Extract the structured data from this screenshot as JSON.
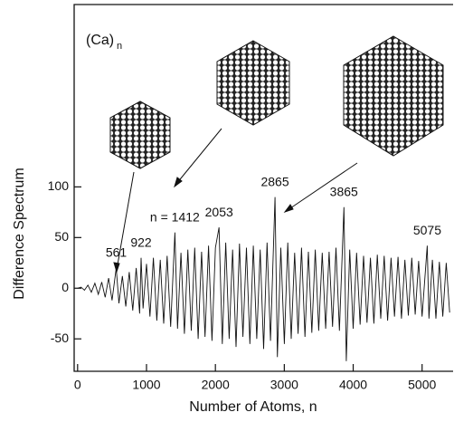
{
  "chart_data": {
    "type": "line",
    "title": "(Ca)",
    "title_subscript": "n",
    "x_label": "Number of Atoms, n",
    "y_label": "Difference Spectrum",
    "xlim": [
      -50,
      5450
    ],
    "ylim": [
      -82,
      280
    ],
    "xticks": [
      0,
      1000,
      2000,
      3000,
      4000,
      5000
    ],
    "yticks": [
      -50,
      0,
      50,
      100
    ],
    "color": "#111111",
    "x": [
      0,
      50,
      100,
      150,
      200,
      250,
      300,
      350,
      400,
      450,
      500,
      561,
      600,
      650,
      700,
      750,
      800,
      850,
      900,
      922,
      950,
      1000,
      1050,
      1100,
      1150,
      1200,
      1250,
      1300,
      1350,
      1412,
      1450,
      1500,
      1550,
      1600,
      1650,
      1700,
      1750,
      1800,
      1850,
      1900,
      1950,
      2000,
      2053,
      2100,
      2150,
      2200,
      2250,
      2300,
      2350,
      2400,
      2450,
      2500,
      2550,
      2600,
      2650,
      2700,
      2750,
      2800,
      2865,
      2900,
      2950,
      3000,
      3050,
      3100,
      3150,
      3200,
      3250,
      3300,
      3350,
      3400,
      3450,
      3500,
      3550,
      3600,
      3650,
      3700,
      3750,
      3800,
      3865,
      3900,
      3950,
      4000,
      4050,
      4100,
      4150,
      4200,
      4250,
      4300,
      4350,
      4400,
      4450,
      4500,
      4550,
      4600,
      4650,
      4700,
      4750,
      4800,
      4850,
      4900,
      4950,
      5000,
      5075,
      5100,
      5150,
      5200,
      5250,
      5300,
      5350,
      5400
    ],
    "values": [
      0,
      1,
      -2,
      3,
      -4,
      5,
      -6,
      6,
      -9,
      10,
      -12,
      20,
      -15,
      12,
      -18,
      16,
      -22,
      20,
      -25,
      30,
      -20,
      24,
      -28,
      30,
      -32,
      28,
      -35,
      32,
      -38,
      55,
      -40,
      35,
      -45,
      38,
      -42,
      40,
      -50,
      36,
      -48,
      42,
      -52,
      40,
      60,
      -55,
      45,
      -50,
      38,
      -58,
      44,
      -48,
      40,
      -55,
      42,
      -50,
      38,
      -60,
      45,
      -52,
      90,
      -68,
      40,
      -55,
      45,
      -50,
      35,
      -45,
      40,
      -48,
      36,
      -44,
      38,
      -42,
      35,
      -40,
      36,
      -38,
      40,
      -42,
      80,
      -72,
      38,
      -40,
      35,
      -36,
      32,
      -34,
      30,
      -35,
      33,
      -30,
      32,
      -32,
      30,
      -28,
      31,
      -30,
      28,
      -27,
      30,
      -26,
      27,
      -28,
      42,
      -30,
      28,
      -30,
      26,
      -28,
      25,
      -24
    ],
    "annotations": [
      {
        "text": "561",
        "x": 561
      },
      {
        "text": "922",
        "x": 922
      },
      {
        "text": "n = 1412",
        "x": 1412
      },
      {
        "text": "2053",
        "x": 2053
      },
      {
        "text": "2865",
        "x": 2865
      },
      {
        "text": "3865",
        "x": 3865
      },
      {
        "text": "5075",
        "x": 5075
      }
    ]
  }
}
